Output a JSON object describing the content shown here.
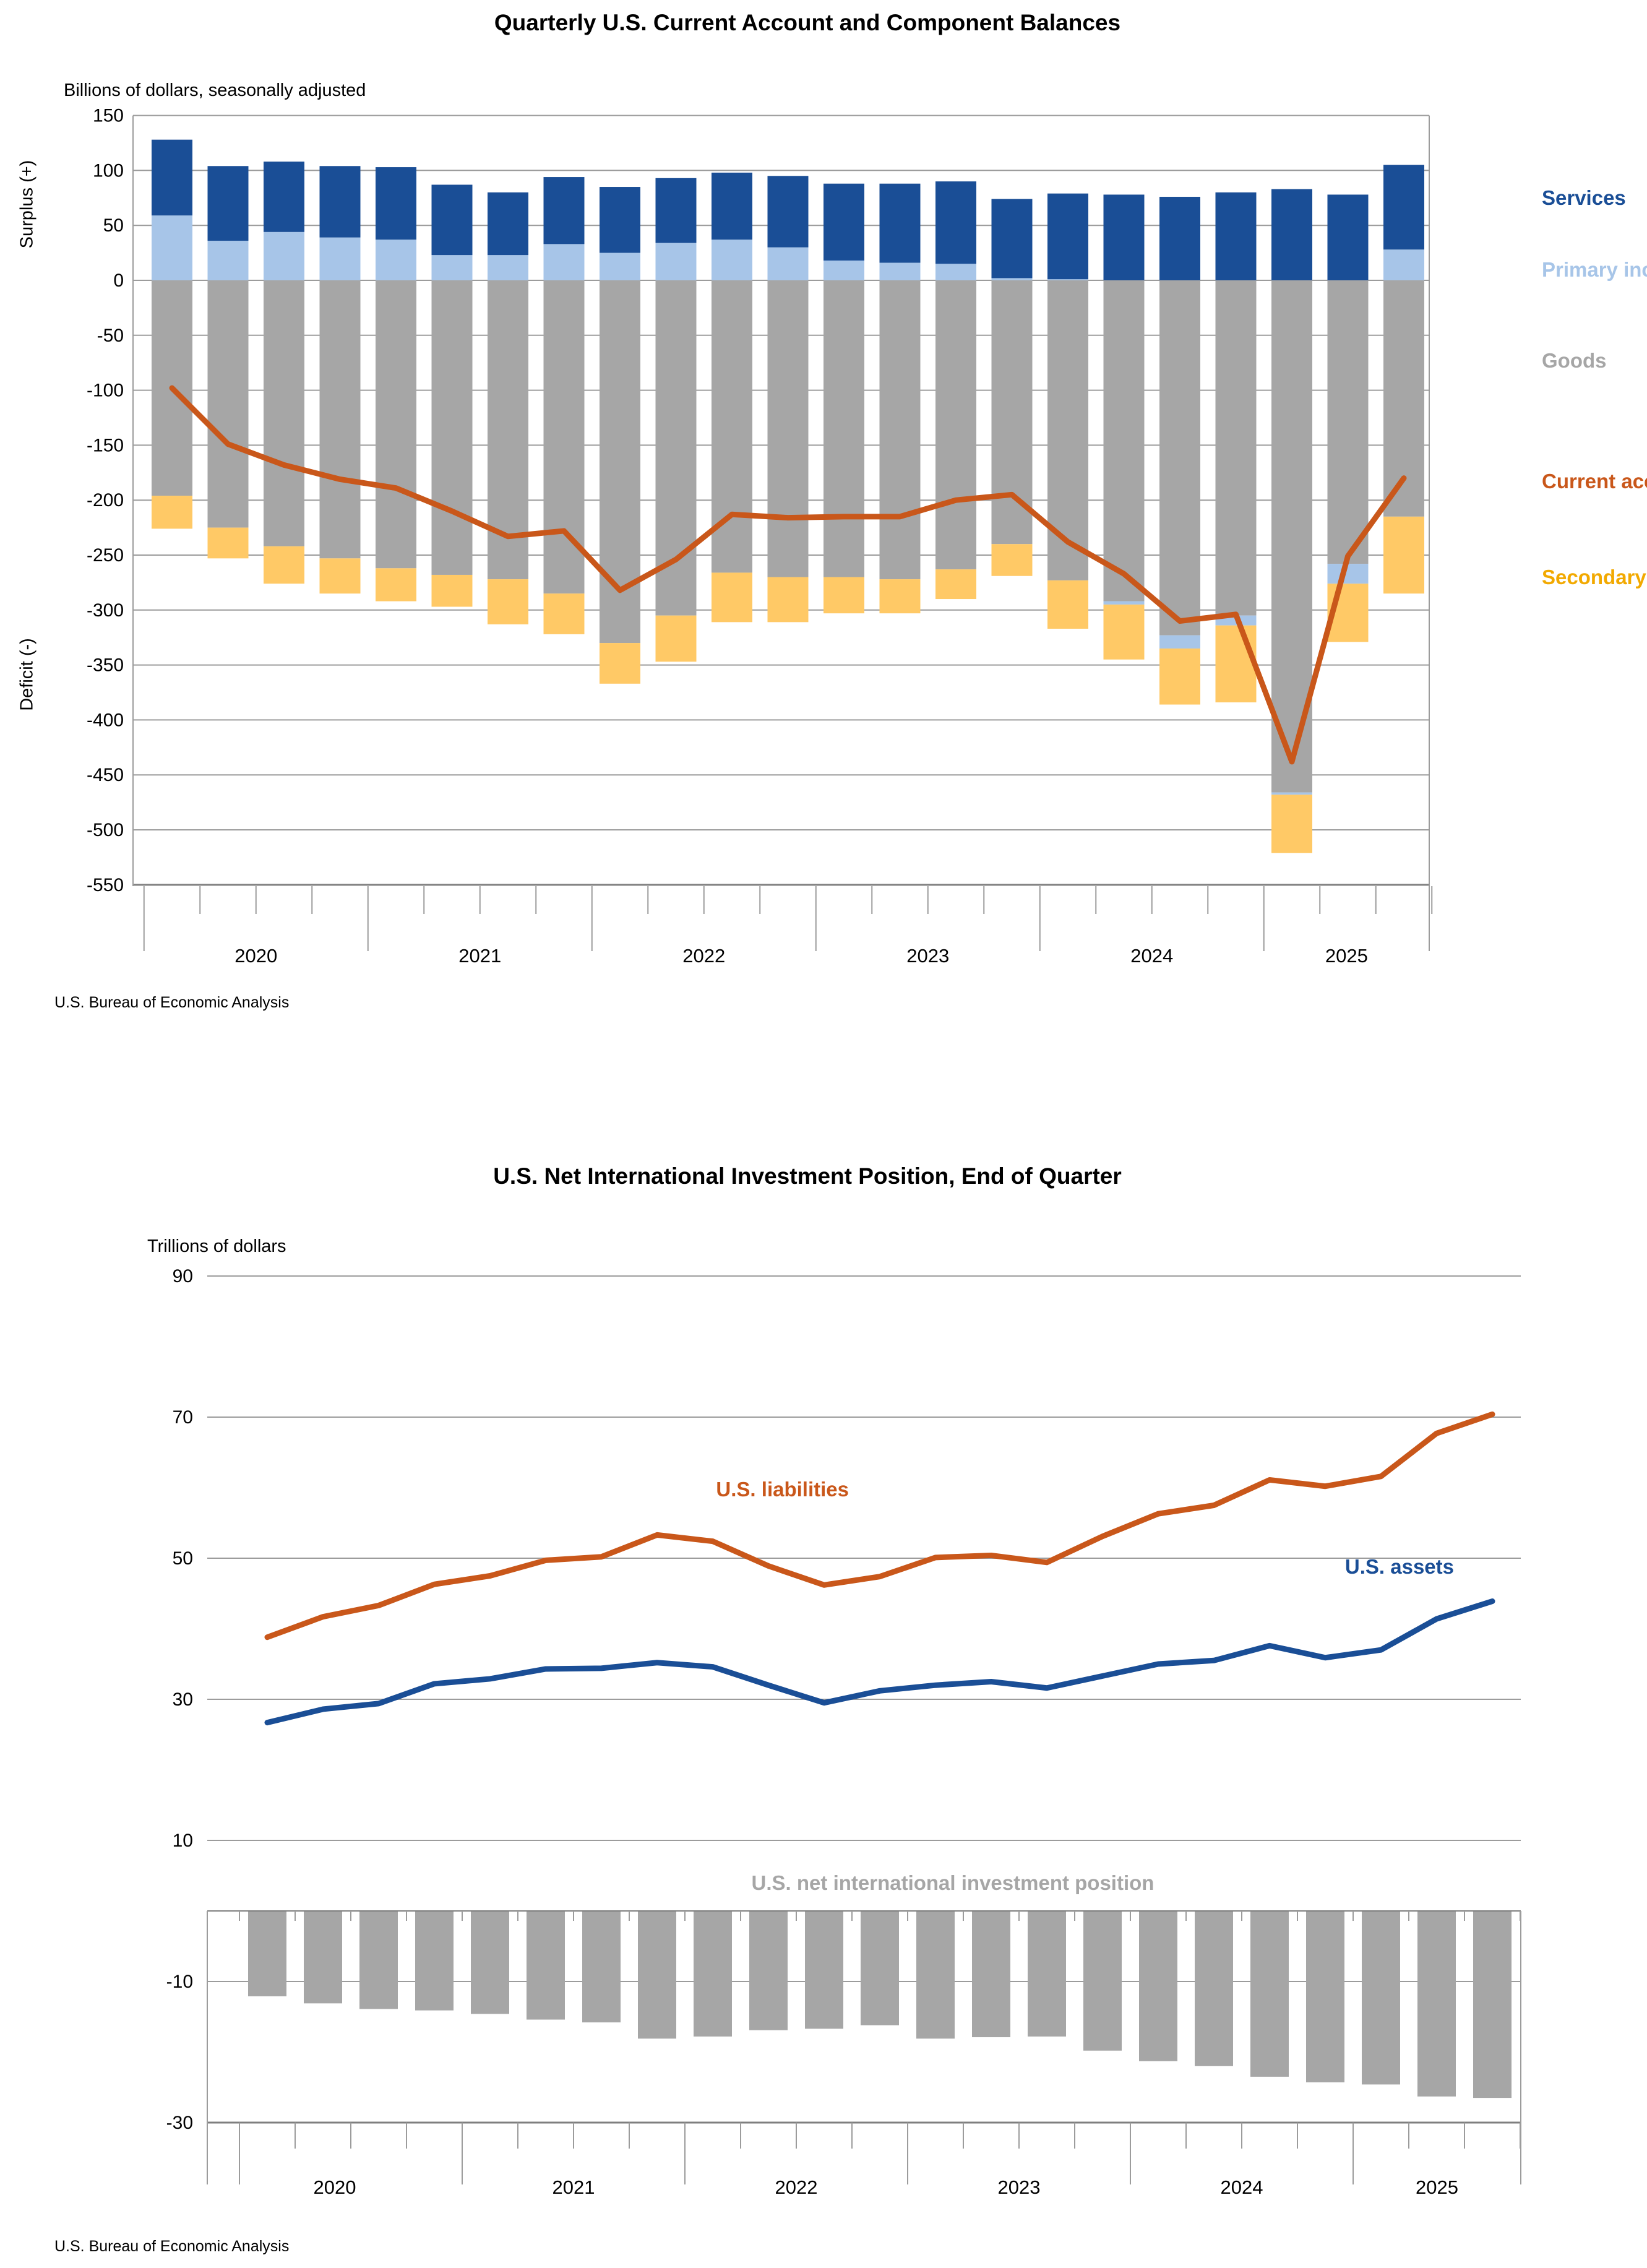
{
  "page": {
    "background": "#ffffff"
  },
  "colors": {
    "services": "#1A4E96",
    "primary_income": "#A7C5E8",
    "goods": "#A6A6A6",
    "secondary_income": "#FFC966",
    "secondary_income_label": "#F2A900",
    "current_account": "#C9571A",
    "assets": "#1A4E96",
    "liabilities": "#C9571A",
    "niip_bar": "#A6A6A6",
    "gridline": "#9C9C9C",
    "axis": "#7F7F7F",
    "text": "#000000"
  },
  "top_chart": {
    "title": "Quarterly U.S. Current Account and Component Balances",
    "subtitle": "Billions of dollars, seasonally adjusted",
    "y_label_upper": "Surplus (+)",
    "y_label_lower": "Deficit (-)",
    "source": "U.S. Bureau of Economic Analysis",
    "legend": {
      "services": "Services",
      "primary_income": "Primary income",
      "goods": "Goods",
      "current_account": "Current account",
      "secondary_income": "Secondary income"
    }
  },
  "bottom_chart": {
    "title": "U.S. Net International Investment Position, End of Quarter",
    "units": "Trillions of dollars",
    "source": "U.S. Bureau of Economic Analysis",
    "labels": {
      "liabilities": "U.S. liabilities",
      "assets": "U.S. assets",
      "niip": "U.S. net international investment position"
    }
  },
  "chart_data": [
    {
      "type": "bar",
      "subtype": "stacked-bar-with-line",
      "title": "Quarterly U.S. Current Account and Component Balances",
      "ylabel": "Billions of dollars, seasonally adjusted",
      "ylim": [
        -550,
        150
      ],
      "yticks": [
        150,
        100,
        50,
        0,
        -50,
        -100,
        -150,
        -200,
        -250,
        -300,
        -350,
        -400,
        -450,
        -500,
        -550
      ],
      "grid": true,
      "legend_position": "right",
      "years": [
        "2020",
        "2021",
        "2022",
        "2023",
        "2024",
        "2025"
      ],
      "x": [
        "2020 Q1",
        "2020 Q2",
        "2020 Q3",
        "2020 Q4",
        "2021 Q1",
        "2021 Q2",
        "2021 Q3",
        "2021 Q4",
        "2022 Q1",
        "2022 Q2",
        "2022 Q3",
        "2022 Q4",
        "2023 Q1",
        "2023 Q2",
        "2023 Q3",
        "2023 Q4",
        "2024 Q1",
        "2024 Q2",
        "2024 Q3",
        "2024 Q4",
        "2025 Q1",
        "2025 Q2",
        "2025 Q3"
      ],
      "stack_order_note": "negative stack: goods, then primary income (when negative), then secondary income; positive stack: primary income, then services",
      "series": [
        {
          "name": "Services",
          "role": "stack",
          "values": [
            69,
            68,
            64,
            65,
            66,
            64,
            57,
            61,
            60,
            59,
            61,
            65,
            70,
            72,
            75,
            72,
            78,
            78,
            76,
            80,
            83,
            78,
            77
          ]
        },
        {
          "name": "Primary income",
          "role": "stack",
          "values": [
            59,
            36,
            44,
            39,
            37,
            23,
            23,
            33,
            25,
            34,
            37,
            30,
            18,
            16,
            15,
            2,
            1,
            -3,
            -12,
            -9,
            -2,
            -18,
            28
          ]
        },
        {
          "name": "Goods",
          "role": "stack",
          "values": [
            -196,
            -225,
            -242,
            -253,
            -262,
            -268,
            -272,
            -285,
            -330,
            -305,
            -266,
            -270,
            -270,
            -272,
            -263,
            -240,
            -273,
            -292,
            -323,
            -305,
            -466,
            -258,
            -215
          ]
        },
        {
          "name": "Secondary income",
          "role": "stack",
          "values": [
            -30,
            -28,
            -34,
            -32,
            -30,
            -29,
            -41,
            -37,
            -37,
            -42,
            -45,
            -41,
            -33,
            -31,
            -27,
            -29,
            -44,
            -50,
            -51,
            -70,
            -53,
            -53,
            -70
          ]
        },
        {
          "name": "Current account",
          "role": "line",
          "values": [
            -98,
            -149,
            -168,
            -181,
            -189,
            -210,
            -233,
            -228,
            -282,
            -254,
            -213,
            -216,
            -215,
            -215,
            -200,
            -195,
            -238,
            -267,
            -310,
            -304,
            -438,
            -251,
            -180
          ]
        }
      ]
    },
    {
      "type": "line",
      "subtype": "two-lines-with-bars",
      "title": "U.S. Net International Investment Position, End of Quarter",
      "ylabel": "Trillions of dollars",
      "ylim": [
        -30,
        90
      ],
      "yticks": [
        90,
        70,
        50,
        30,
        10,
        -10,
        -30
      ],
      "grid": true,
      "years": [
        "2020",
        "2021",
        "2022",
        "2023",
        "2024",
        "2025"
      ],
      "x": [
        "2020 Q1",
        "2020 Q2",
        "2020 Q3",
        "2020 Q4",
        "2021 Q1",
        "2021 Q2",
        "2021 Q3",
        "2021 Q4",
        "2022 Q1",
        "2022 Q2",
        "2022 Q3",
        "2022 Q4",
        "2023 Q1",
        "2023 Q2",
        "2023 Q3",
        "2023 Q4",
        "2024 Q1",
        "2024 Q2",
        "2024 Q3",
        "2024 Q4",
        "2025 Q1",
        "2025 Q2",
        "2025 Q3"
      ],
      "series": [
        {
          "name": "U.S. liabilities",
          "role": "line",
          "values": [
            38.8,
            41.7,
            43.3,
            46.3,
            47.5,
            49.7,
            50.2,
            53.3,
            52.4,
            48.9,
            46.2,
            47.4,
            50.1,
            50.4,
            49.4,
            53.1,
            56.3,
            57.5,
            61.1,
            60.2,
            61.6,
            67.7,
            70.4
          ]
        },
        {
          "name": "U.S. assets",
          "role": "line",
          "values": [
            26.7,
            28.6,
            29.4,
            32.2,
            32.9,
            34.3,
            34.4,
            35.2,
            34.6,
            32.0,
            29.5,
            31.2,
            32.0,
            32.5,
            31.6,
            33.3,
            35.0,
            35.5,
            37.6,
            35.9,
            37.0,
            41.4,
            43.9
          ]
        },
        {
          "name": "U.S. net international investment position",
          "role": "bar",
          "values": [
            -12.1,
            -13.1,
            -13.9,
            -14.1,
            -14.6,
            -15.4,
            -15.8,
            -18.1,
            -17.8,
            -16.9,
            -16.7,
            -16.2,
            -18.1,
            -17.9,
            -17.8,
            -19.8,
            -21.3,
            -22.0,
            -23.5,
            -24.3,
            -24.6,
            -26.3,
            -26.5
          ]
        }
      ]
    }
  ]
}
